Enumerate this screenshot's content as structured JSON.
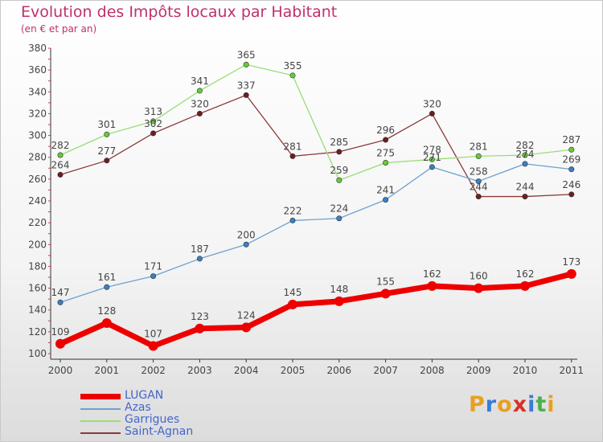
{
  "header": {
    "title": "Evolution des Impôts locaux par Habitant",
    "subtitle": "(en € et par an)"
  },
  "logo": {
    "text": "Proxiti",
    "letters": [
      {
        "ch": "P",
        "color": "#e8a020"
      },
      {
        "ch": "r",
        "color": "#3a7bd5"
      },
      {
        "ch": "o",
        "color": "#e8a020"
      },
      {
        "ch": "x",
        "color": "#d93025"
      },
      {
        "ch": "i",
        "color": "#3a7bd5"
      },
      {
        "ch": "t",
        "color": "#4caf50"
      },
      {
        "ch": "i",
        "color": "#e8a020"
      }
    ]
  },
  "chart_data": {
    "type": "line",
    "title": "Evolution des Impôts locaux par Habitant",
    "subtitle": "(en € et par an)",
    "xlabel": "",
    "ylabel": "",
    "categories": [
      "2000",
      "2001",
      "2002",
      "2003",
      "2004",
      "2005",
      "2006",
      "2007",
      "2008",
      "2009",
      "2010",
      "2011"
    ],
    "ylim": [
      100,
      380
    ],
    "yticks": [
      100,
      120,
      140,
      160,
      180,
      200,
      220,
      240,
      260,
      280,
      300,
      320,
      340,
      360,
      380
    ],
    "grid": false,
    "legend_position": "bottom-left",
    "series": [
      {
        "name": "LUGAN",
        "color": "#ee0000",
        "marker": "#ee0000",
        "emphasis": true,
        "values": [
          109,
          128,
          107,
          123,
          124,
          145,
          148,
          155,
          162,
          160,
          162,
          173
        ]
      },
      {
        "name": "Azas",
        "color": "#6fa0d0",
        "marker": "#3b7fc4",
        "emphasis": false,
        "values": [
          147,
          161,
          171,
          187,
          200,
          222,
          224,
          241,
          271,
          258,
          274,
          269
        ]
      },
      {
        "name": "Garrigues",
        "color": "#99dd77",
        "marker": "#66cc33",
        "emphasis": false,
        "values": [
          282,
          301,
          313,
          341,
          365,
          355,
          259,
          275,
          278,
          281,
          282,
          287
        ]
      },
      {
        "name": "Saint-Agnan",
        "color": "#8b3a3a",
        "marker": "#6b1f1f",
        "emphasis": false,
        "values": [
          264,
          277,
          302,
          320,
          337,
          281,
          285,
          296,
          320,
          244,
          244,
          246
        ]
      }
    ]
  }
}
